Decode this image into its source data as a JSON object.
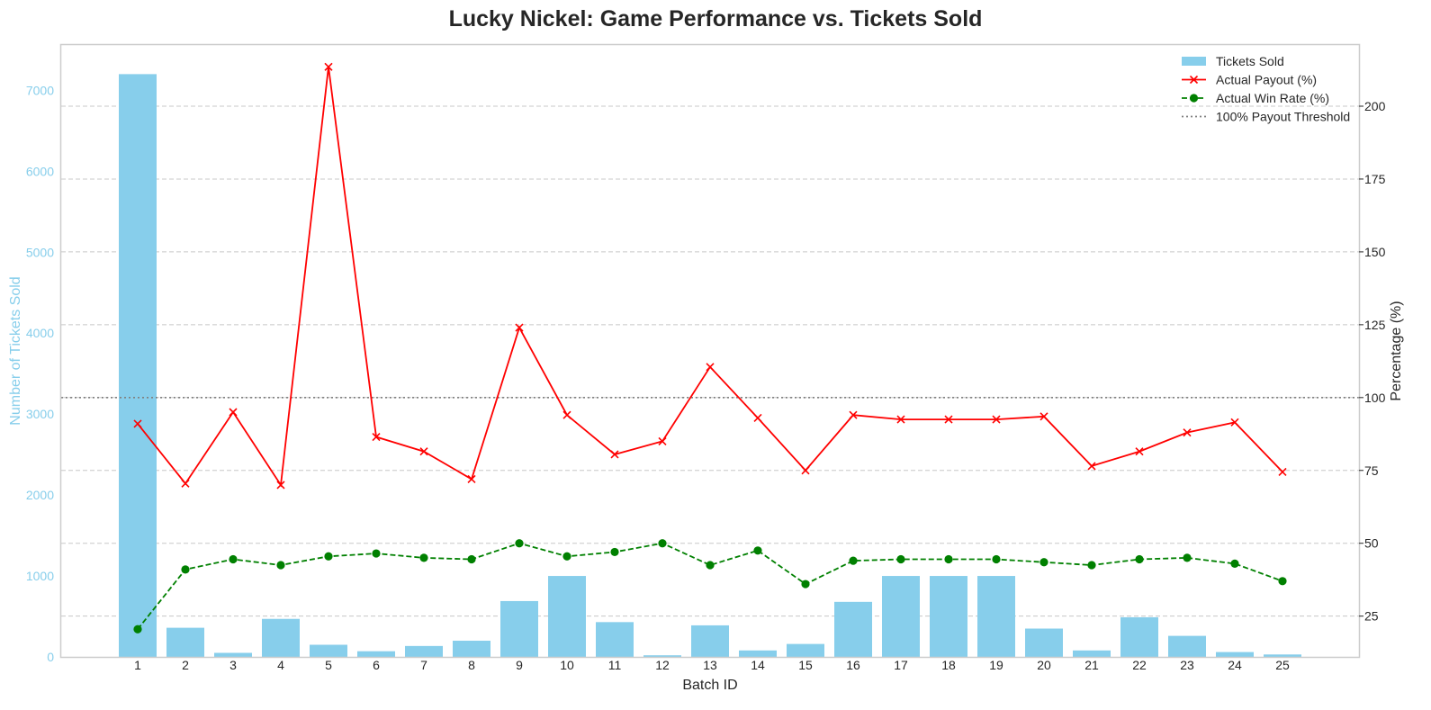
{
  "chart_data": {
    "type": "bar",
    "title": "Lucky Nickel: Game Performance vs. Tickets Sold",
    "xlabel": "Batch ID",
    "ylabel_left": "Number of Tickets Sold",
    "ylabel_right": "Percentage (%)",
    "categories": [
      "1",
      "2",
      "3",
      "4",
      "5",
      "6",
      "7",
      "8",
      "9",
      "10",
      "11",
      "12",
      "13",
      "14",
      "15",
      "16",
      "17",
      "18",
      "19",
      "20",
      "21",
      "22",
      "23",
      "24",
      "25"
    ],
    "ylim_left": [
      0,
      7560
    ],
    "ylim_right": [
      11,
      221
    ],
    "yticks_left": [
      0,
      1000,
      2000,
      3000,
      4000,
      5000,
      6000,
      7000
    ],
    "yticks_right": [
      25,
      50,
      75,
      100,
      125,
      150,
      175,
      200
    ],
    "grid": true,
    "legend_position": "top-right",
    "series": [
      {
        "name": "Tickets Sold",
        "type": "bar",
        "axis": "left",
        "color": "#87ceeb",
        "values": [
          7200,
          360,
          50,
          470,
          150,
          70,
          135,
          200,
          690,
          1000,
          430,
          20,
          390,
          80,
          160,
          680,
          1000,
          1000,
          1000,
          350,
          80,
          490,
          260,
          60,
          30
        ]
      },
      {
        "name": "Actual Payout (%)",
        "type": "line",
        "axis": "right",
        "color": "#ff0000",
        "marker": "x",
        "dash": "solid",
        "values": [
          91,
          70.5,
          95,
          70,
          213.5,
          86.5,
          81.5,
          72,
          124,
          94,
          80.5,
          85,
          110.5,
          93,
          75,
          94,
          92.5,
          92.5,
          92.5,
          93.5,
          76.5,
          81.5,
          88,
          91.5,
          74.5
        ]
      },
      {
        "name": "Actual Win Rate (%)",
        "type": "line",
        "axis": "right",
        "color": "#008000",
        "marker": "circle",
        "dash": "dashed",
        "values": [
          20.5,
          41,
          44.5,
          42.5,
          45.5,
          46.5,
          45,
          44.5,
          50,
          45.5,
          47,
          50,
          42.5,
          47.5,
          36,
          44,
          44.5,
          44.5,
          44.5,
          43.5,
          42.5,
          44.5,
          45,
          43,
          37
        ]
      },
      {
        "name": "100% Payout Threshold",
        "type": "hline",
        "axis": "right",
        "color": "#808080",
        "dash": "dotted",
        "value": 100
      }
    ]
  }
}
